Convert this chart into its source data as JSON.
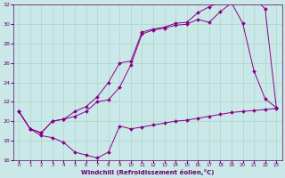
{
  "xlabel": "Windchill (Refroidissement éolien,°C)",
  "background_color": "#cbe8e8",
  "grid_color": "#aad4cc",
  "line_color": "#880088",
  "xlim": [
    -0.5,
    23.5
  ],
  "ylim": [
    16,
    32
  ],
  "xticks": [
    0,
    1,
    2,
    3,
    4,
    5,
    6,
    7,
    8,
    9,
    10,
    11,
    12,
    13,
    14,
    15,
    16,
    17,
    18,
    19,
    20,
    21,
    22,
    23
  ],
  "yticks": [
    16,
    18,
    20,
    22,
    24,
    26,
    28,
    30,
    32
  ],
  "series1_x": [
    0,
    1,
    2,
    3,
    4,
    5,
    6,
    7,
    8,
    9,
    10,
    11,
    12,
    13,
    14,
    15,
    16,
    17,
    18,
    19,
    20,
    21,
    22,
    23
  ],
  "series1_y": [
    21.0,
    19.2,
    18.5,
    18.3,
    17.8,
    16.8,
    16.5,
    16.2,
    16.8,
    19.5,
    19.2,
    19.4,
    19.6,
    19.8,
    20.0,
    20.1,
    20.3,
    20.5,
    20.7,
    20.9,
    21.0,
    21.1,
    21.2,
    21.3
  ],
  "series2_x": [
    0,
    1,
    2,
    3,
    4,
    5,
    6,
    7,
    8,
    9,
    10,
    11,
    12,
    13,
    14,
    15,
    16,
    17,
    18,
    19,
    20,
    21,
    22,
    23
  ],
  "series2_y": [
    21.0,
    19.2,
    18.8,
    20.0,
    20.2,
    20.5,
    21.0,
    22.0,
    22.2,
    23.5,
    25.8,
    29.0,
    29.4,
    29.6,
    29.9,
    30.0,
    30.5,
    30.2,
    31.3,
    32.2,
    30.1,
    25.2,
    22.3,
    21.4
  ],
  "series3_x": [
    0,
    1,
    2,
    3,
    4,
    5,
    6,
    7,
    8,
    9,
    10,
    11,
    12,
    13,
    14,
    15,
    16,
    17,
    18,
    19,
    20,
    21,
    22,
    23
  ],
  "series3_y": [
    21.0,
    19.2,
    18.8,
    20.0,
    20.2,
    21.0,
    21.5,
    22.5,
    24.0,
    26.0,
    26.2,
    29.2,
    29.5,
    29.7,
    30.1,
    30.2,
    31.2,
    31.8,
    32.3,
    32.6,
    32.8,
    32.7,
    31.6,
    21.4
  ]
}
